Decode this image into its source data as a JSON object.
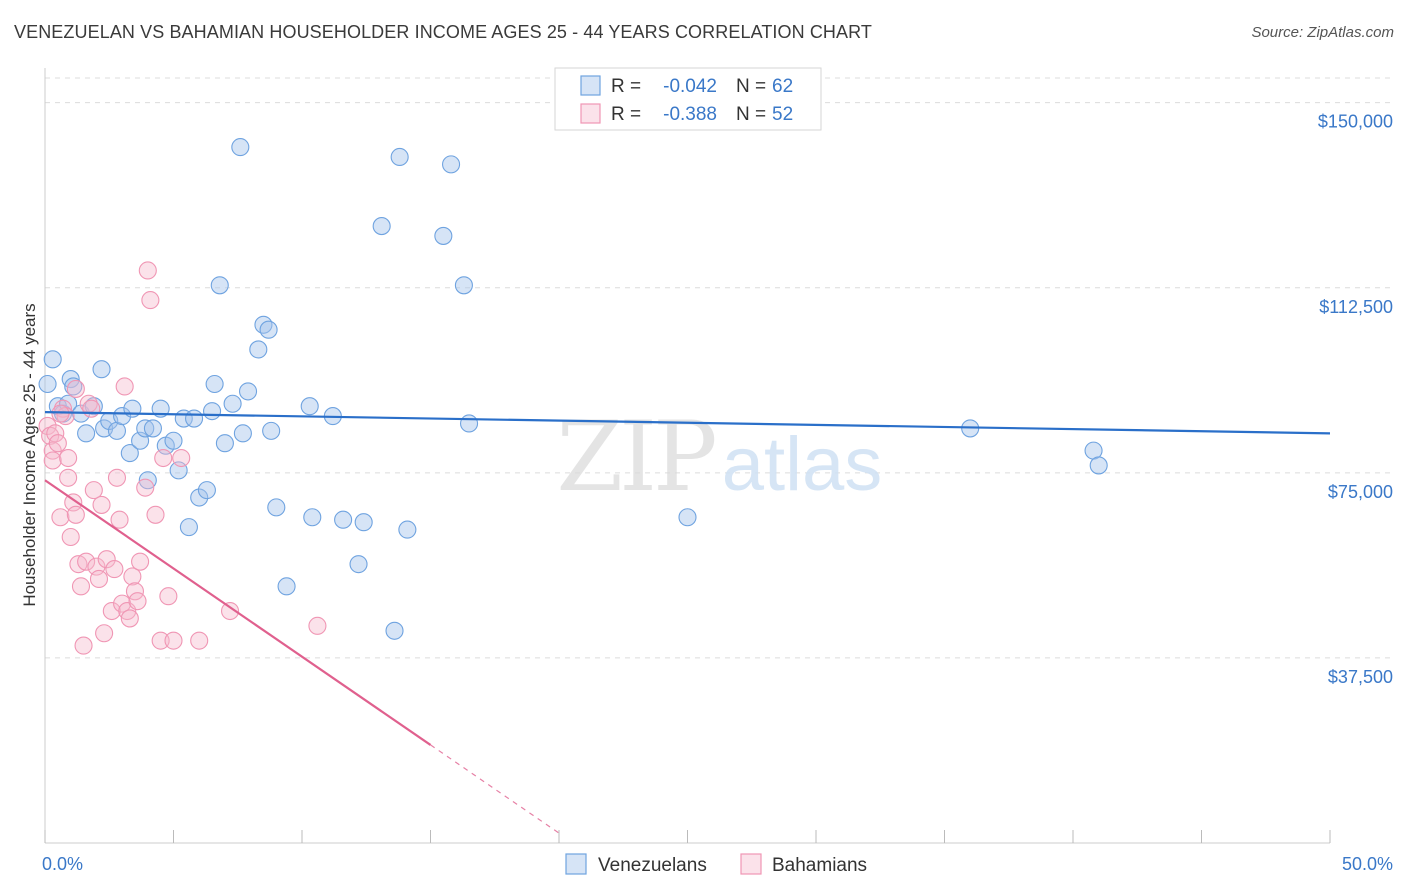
{
  "chart_data": {
    "type": "scatter",
    "title": "VENEZUELAN VS BAHAMIAN HOUSEHOLDER INCOME AGES 25 - 44 YEARS CORRELATION CHART",
    "source": "Source: ZipAtlas.com",
    "xlabel": "",
    "ylabel": "Householder Income Ages 25 - 44 years",
    "xlim": [
      0,
      50
    ],
    "ylim": [
      0,
      155000
    ],
    "x_tick_labels": {
      "min": "0.0%",
      "max": "50.0%"
    },
    "y_ticks": [
      {
        "value": 37500,
        "label": "$37,500"
      },
      {
        "value": 75000,
        "label": "$75,000"
      },
      {
        "value": 112500,
        "label": "$112,500"
      },
      {
        "value": 150000,
        "label": "$150,000"
      }
    ],
    "watermark": {
      "zip": "ZIP",
      "atlas": "atlas"
    },
    "legend_position": "top-center",
    "series": [
      {
        "name": "Venezuelans",
        "color": "#6fa3e0",
        "fill": "rgba(164,196,236,0.45)",
        "line_color": "#2a6fc9",
        "r_label": "R =",
        "r_value": "-0.042",
        "n_label": "N =",
        "n_value": "62",
        "trend": {
          "x_start": 0,
          "y_start": 87300,
          "x_end": 50,
          "y_end": 83000,
          "solid_until": 50
        },
        "points": [
          [
            0.1,
            93000
          ],
          [
            0.3,
            98000
          ],
          [
            0.5,
            88500
          ],
          [
            0.7,
            87000
          ],
          [
            1.0,
            94000
          ],
          [
            1.1,
            92500
          ],
          [
            0.9,
            89000
          ],
          [
            1.4,
            87000
          ],
          [
            1.6,
            83000
          ],
          [
            1.9,
            88500
          ],
          [
            2.2,
            96000
          ],
          [
            2.3,
            84000
          ],
          [
            2.5,
            85500
          ],
          [
            2.8,
            83500
          ],
          [
            3.0,
            86500
          ],
          [
            3.3,
            79000
          ],
          [
            3.4,
            88000
          ],
          [
            3.7,
            81500
          ],
          [
            3.9,
            84000
          ],
          [
            4.2,
            84000
          ],
          [
            4.0,
            73500
          ],
          [
            4.5,
            88000
          ],
          [
            4.7,
            80500
          ],
          [
            5.0,
            81500
          ],
          [
            5.2,
            75500
          ],
          [
            5.4,
            86000
          ],
          [
            5.6,
            64000
          ],
          [
            5.8,
            86000
          ],
          [
            6.0,
            70000
          ],
          [
            6.3,
            71500
          ],
          [
            6.5,
            87500
          ],
          [
            6.6,
            93000
          ],
          [
            6.8,
            113000
          ],
          [
            7.0,
            81000
          ],
          [
            7.3,
            89000
          ],
          [
            7.6,
            141000
          ],
          [
            7.7,
            83000
          ],
          [
            7.9,
            91500
          ],
          [
            8.3,
            100000
          ],
          [
            8.5,
            105000
          ],
          [
            8.7,
            104000
          ],
          [
            8.8,
            83500
          ],
          [
            9.0,
            68000
          ],
          [
            9.4,
            52000
          ],
          [
            10.3,
            88500
          ],
          [
            10.4,
            66000
          ],
          [
            11.2,
            86500
          ],
          [
            11.6,
            65500
          ],
          [
            12.2,
            56500
          ],
          [
            12.4,
            65000
          ],
          [
            13.1,
            125000
          ],
          [
            13.6,
            43000
          ],
          [
            13.8,
            139000
          ],
          [
            14.1,
            63500
          ],
          [
            15.5,
            123000
          ],
          [
            15.8,
            137500
          ],
          [
            16.3,
            113000
          ],
          [
            16.5,
            85000
          ],
          [
            25.0,
            66000
          ],
          [
            36.0,
            84000
          ],
          [
            40.8,
            79500
          ],
          [
            41.0,
            76500
          ]
        ]
      },
      {
        "name": "Bahamians",
        "color": "#f096b4",
        "fill": "rgba(246,186,206,0.42)",
        "line_color": "#e0608e",
        "r_label": "R =",
        "r_value": "-0.388",
        "n_label": "N =",
        "n_value": "52",
        "trend": {
          "x_start": 0,
          "y_start": 73500,
          "x_end": 20,
          "y_end": 2000,
          "solid_until": 15
        },
        "points": [
          [
            0.1,
            84500
          ],
          [
            0.2,
            82500
          ],
          [
            0.3,
            79500
          ],
          [
            0.3,
            77500
          ],
          [
            0.4,
            83000
          ],
          [
            0.5,
            81000
          ],
          [
            0.6,
            66000
          ],
          [
            0.7,
            88000
          ],
          [
            0.8,
            86500
          ],
          [
            0.9,
            74000
          ],
          [
            0.9,
            78000
          ],
          [
            1.0,
            62000
          ],
          [
            1.1,
            69000
          ],
          [
            1.2,
            66500
          ],
          [
            1.3,
            56500
          ],
          [
            1.4,
            52000
          ],
          [
            1.5,
            40000
          ],
          [
            1.6,
            57000
          ],
          [
            1.7,
            89000
          ],
          [
            1.8,
            88000
          ],
          [
            1.9,
            71500
          ],
          [
            2.0,
            56000
          ],
          [
            2.1,
            53500
          ],
          [
            2.3,
            42500
          ],
          [
            2.4,
            57500
          ],
          [
            2.6,
            47000
          ],
          [
            2.7,
            55500
          ],
          [
            2.8,
            74000
          ],
          [
            3.0,
            48500
          ],
          [
            3.2,
            47000
          ],
          [
            3.3,
            45500
          ],
          [
            3.4,
            54000
          ],
          [
            3.5,
            51000
          ],
          [
            3.6,
            49000
          ],
          [
            3.7,
            57000
          ],
          [
            3.9,
            72000
          ],
          [
            4.0,
            116000
          ],
          [
            4.1,
            110000
          ],
          [
            4.3,
            66500
          ],
          [
            4.5,
            41000
          ],
          [
            4.6,
            78000
          ],
          [
            4.8,
            50000
          ],
          [
            5.0,
            41000
          ],
          [
            5.3,
            78000
          ],
          [
            6.0,
            41000
          ],
          [
            2.2,
            68500
          ],
          [
            1.2,
            92000
          ],
          [
            2.9,
            65500
          ],
          [
            3.1,
            92500
          ],
          [
            7.2,
            47000
          ],
          [
            10.6,
            44000
          ],
          [
            0.6,
            87000
          ]
        ]
      }
    ]
  }
}
